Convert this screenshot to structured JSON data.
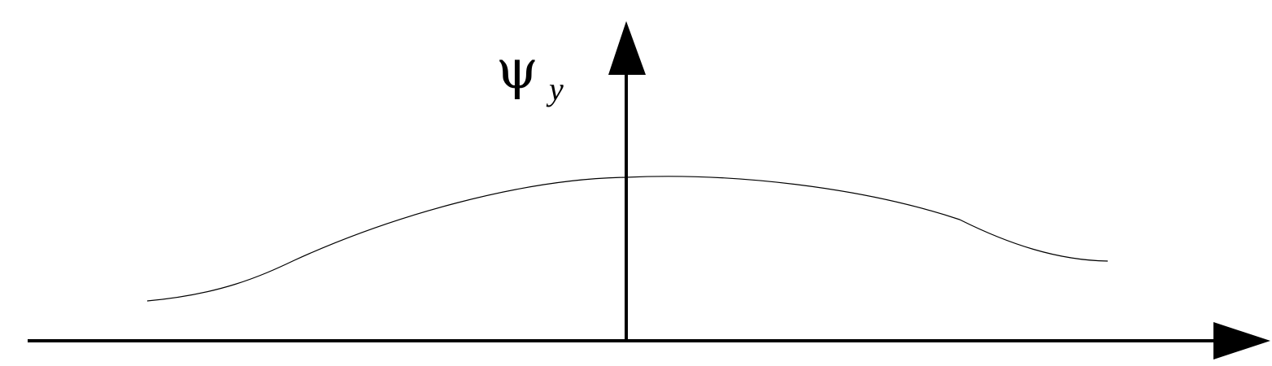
{
  "diagram": {
    "vertical_axis_label": {
      "symbol": "ψ",
      "subscript": "y"
    },
    "line_color": "#000000",
    "background_color": "#ffffff"
  }
}
